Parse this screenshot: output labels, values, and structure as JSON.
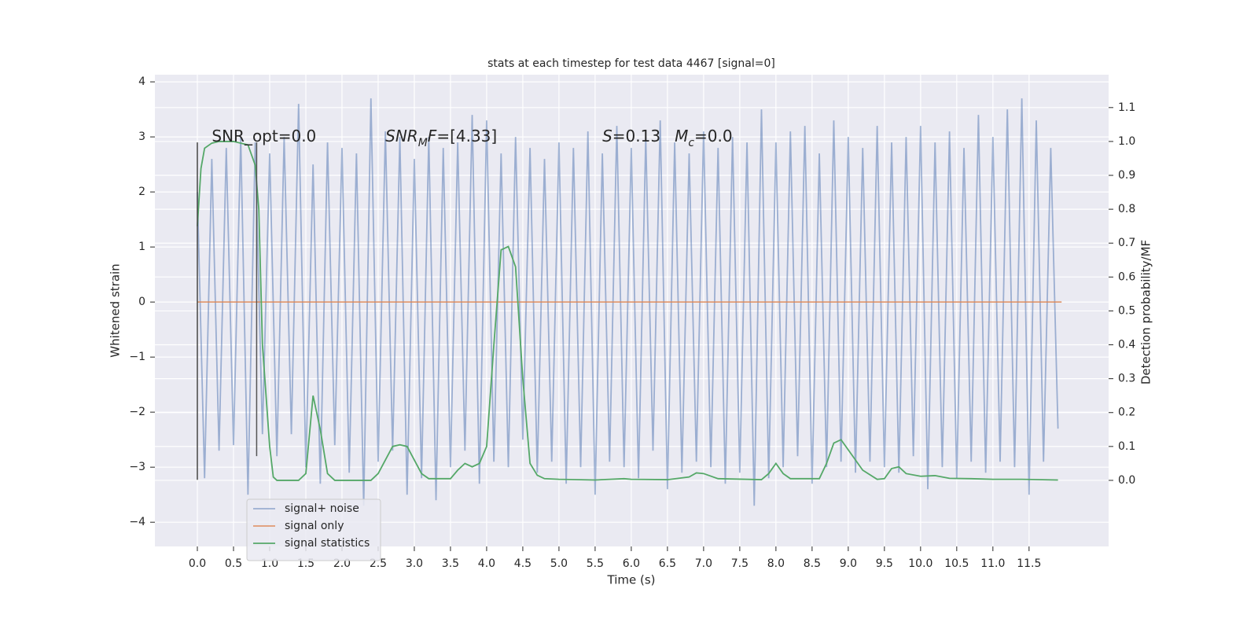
{
  "chart_data": {
    "type": "line",
    "title": "stats at each timestep for test data 4467 [signal=0]",
    "xlabel": "Time (s)",
    "ylabel": "Whitened strain",
    "y2label": "Detection probability/MF",
    "xlim": [
      -0.587,
      12.6
    ],
    "ylim": [
      -4.44,
      4.13
    ],
    "y2lim": [
      -0.195,
      1.197
    ],
    "xticks": [
      {
        "value": 0,
        "label": "0.0"
      },
      0.5,
      {
        "value": 1,
        "label": "1.0"
      },
      1.5,
      {
        "value": 2,
        "label": "2.0"
      },
      2.5,
      {
        "value": 3,
        "label": "3.0"
      },
      3.5,
      {
        "value": 4,
        "label": "4.0"
      },
      4.5,
      {
        "value": 5,
        "label": "5.0"
      },
      5.5,
      {
        "value": 6,
        "label": "6.0"
      },
      6.5,
      {
        "value": 7,
        "label": "7.0"
      },
      7.5,
      {
        "value": 8,
        "label": "8.0"
      },
      8.5,
      {
        "value": 9,
        "label": "9.0"
      },
      9.5,
      {
        "value": 10,
        "label": "10.0"
      },
      10.5,
      {
        "value": 11,
        "label": "11.0"
      },
      11.5
    ],
    "yticks": [
      {
        "value": -4,
        "label": "−4"
      },
      {
        "value": -3,
        "label": "−3"
      },
      {
        "value": -2,
        "label": "−2"
      },
      {
        "value": -1,
        "label": "−1"
      },
      0,
      1,
      2,
      3,
      4
    ],
    "y2ticks": [
      {
        "value": 0,
        "label": "0.0"
      },
      0.1,
      0.2,
      0.3,
      0.4,
      0.5,
      0.6,
      0.7,
      0.8,
      0.9,
      {
        "value": 1,
        "label": "1.0"
      },
      1.1
    ],
    "grid": true,
    "legend": "lower left",
    "series": [
      {
        "name": "signal+ noise",
        "color": "#4c72b0",
        "alpha": 0.5,
        "x": [
          0,
          0.1,
          0.2,
          0.3,
          0.4,
          0.5,
          0.6,
          0.7,
          0.8,
          0.9,
          1,
          1.1,
          1.2,
          1.3,
          1.4,
          1.5,
          1.6,
          1.7,
          1.8,
          1.9,
          2,
          2.1,
          2.2,
          2.3,
          2.4,
          2.5,
          2.6,
          2.7,
          2.8,
          2.9,
          3,
          3.1,
          3.2,
          3.3,
          3.4,
          3.5,
          3.6,
          3.7,
          3.8,
          3.9,
          4,
          4.1,
          4.2,
          4.3,
          4.4,
          4.5,
          4.6,
          4.7,
          4.8,
          4.9,
          5,
          5.1,
          5.2,
          5.3,
          5.4,
          5.5,
          5.6,
          5.7,
          5.8,
          5.9,
          6,
          6.1,
          6.2,
          6.3,
          6.4,
          6.5,
          6.6,
          6.7,
          6.8,
          6.9,
          7,
          7.1,
          7.2,
          7.3,
          7.4,
          7.5,
          7.6,
          7.7,
          7.8,
          7.9,
          8,
          8.1,
          8.2,
          8.3,
          8.4,
          8.5,
          8.6,
          8.7,
          8.8,
          8.9,
          9,
          9.1,
          9.2,
          9.3,
          9.4,
          9.5,
          9.6,
          9.7,
          9.8,
          9.9,
          10,
          10.1,
          10.2,
          10.3,
          10.4,
          10.5,
          10.6,
          10.7,
          10.8,
          10.9,
          11,
          11.1,
          11.2,
          11.3,
          11.4,
          11.5,
          11.6,
          11.7,
          11.8,
          11.9
        ],
        "values": [
          2.0,
          -3.2,
          2.6,
          -2.7,
          2.8,
          -2.6,
          3.0,
          -3.5,
          2.9,
          -2.4,
          2.7,
          -2.8,
          3.0,
          -2.4,
          3.6,
          -3.0,
          2.5,
          -3.3,
          2.9,
          -2.6,
          2.8,
          -3.1,
          2.7,
          -3.7,
          3.7,
          -2.9,
          3.1,
          -2.7,
          3.0,
          -3.5,
          2.6,
          -3.2,
          3.0,
          -3.6,
          2.8,
          -3.0,
          2.9,
          -2.7,
          3.4,
          -3.3,
          3.3,
          -2.9,
          2.7,
          -3.0,
          3.0,
          -2.5,
          2.8,
          -3.1,
          2.6,
          -2.9,
          2.9,
          -3.3,
          2.8,
          -3.0,
          3.1,
          -3.5,
          2.7,
          -2.9,
          3.2,
          -3.0,
          2.8,
          -3.2,
          3.0,
          -2.7,
          3.3,
          -3.4,
          2.9,
          -3.1,
          2.7,
          -2.9,
          3.1,
          -3.0,
          2.8,
          -3.3,
          3.0,
          -3.1,
          2.9,
          -3.7,
          3.5,
          -3.2,
          2.9,
          -3.0,
          3.1,
          -2.8,
          3.2,
          -3.3,
          2.7,
          -3.0,
          3.3,
          -2.9,
          3.0,
          -3.1,
          2.8,
          -2.9,
          3.2,
          -3.0,
          2.9,
          -3.1,
          3.0,
          -2.8,
          3.2,
          -3.4,
          2.9,
          -3.0,
          3.1,
          -3.2,
          2.8,
          -2.9,
          3.4,
          -3.1,
          3.0,
          -2.9,
          3.5,
          -3.0,
          3.7,
          -3.5,
          3.3,
          -2.9,
          2.8,
          -2.3
        ]
      },
      {
        "name": "signal only",
        "color": "#dd8452",
        "alpha": 0.8,
        "x": [
          0,
          11.95
        ],
        "values": [
          0,
          0
        ]
      },
      {
        "name": "signal statistics",
        "color": "#55a868",
        "alpha": 1,
        "axis": "y2",
        "x": [
          0,
          0.05,
          0.1,
          0.2,
          0.3,
          0.5,
          0.7,
          0.8,
          0.85,
          0.9,
          1,
          1.05,
          1.1,
          1.4,
          1.5,
          1.6,
          1.7,
          1.8,
          1.9,
          2.4,
          2.5,
          2.6,
          2.7,
          2.8,
          2.9,
          3,
          3.1,
          3.2,
          3.5,
          3.6,
          3.7,
          3.8,
          3.9,
          4,
          4.1,
          4.2,
          4.3,
          4.4,
          4.5,
          4.6,
          4.7,
          4.8,
          5,
          5.5,
          5.9,
          6,
          6.5,
          6.8,
          6.9,
          7,
          7.2,
          7.8,
          7.9,
          8,
          8.1,
          8.2,
          8.6,
          8.7,
          8.8,
          8.9,
          9,
          9.2,
          9.4,
          9.5,
          9.6,
          9.7,
          9.8,
          10,
          10.2,
          10.4,
          10.7,
          11,
          11.4,
          11.9
        ],
        "values": [
          0.75,
          0.92,
          0.98,
          0.995,
          1.0,
          1.0,
          0.99,
          0.93,
          0.8,
          0.4,
          0.1,
          0.01,
          0.0,
          0.0,
          0.02,
          0.25,
          0.15,
          0.02,
          0.0,
          0.0,
          0.02,
          0.06,
          0.1,
          0.105,
          0.1,
          0.06,
          0.02,
          0.005,
          0.005,
          0.03,
          0.05,
          0.04,
          0.05,
          0.1,
          0.4,
          0.68,
          0.69,
          0.63,
          0.3,
          0.05,
          0.015,
          0.005,
          0.003,
          0.001,
          0.005,
          0.003,
          0.002,
          0.01,
          0.022,
          0.02,
          0.005,
          0.002,
          0.02,
          0.05,
          0.02,
          0.005,
          0.005,
          0.05,
          0.11,
          0.12,
          0.09,
          0.03,
          0.003,
          0.005,
          0.035,
          0.04,
          0.02,
          0.012,
          0.014,
          0.006,
          0.005,
          0.003,
          0.003,
          0.001
        ]
      }
    ],
    "vlines": [
      {
        "x": 0,
        "ymin": -3.23,
        "ymax": 2.9,
        "color": "#444444"
      },
      {
        "x": 0.82,
        "ymin": -2.8,
        "ymax": 2.9,
        "color": "#555555"
      }
    ],
    "annotations": [
      {
        "x": 0.2,
        "y": 3.0,
        "parts": [
          {
            "text": "SNR_opt=0.0"
          }
        ]
      },
      {
        "x": 2.6,
        "y": 3.0,
        "parts": [
          {
            "text": "SNR",
            "italic": true
          },
          {
            "text": "M",
            "italic": true,
            "sub": true
          },
          {
            "text": "F",
            "italic": true
          },
          {
            "text": "=[4.33]"
          }
        ]
      },
      {
        "x": 5.6,
        "y": 3.0,
        "parts": [
          {
            "text": "S",
            "italic": true
          },
          {
            "text": "=0.13"
          }
        ]
      },
      {
        "x": 6.6,
        "y": 3.0,
        "parts": [
          {
            "text": "M",
            "italic": true
          },
          {
            "text": "c",
            "italic": true,
            "sub": true
          },
          {
            "text": "=0.0"
          }
        ]
      }
    ]
  }
}
